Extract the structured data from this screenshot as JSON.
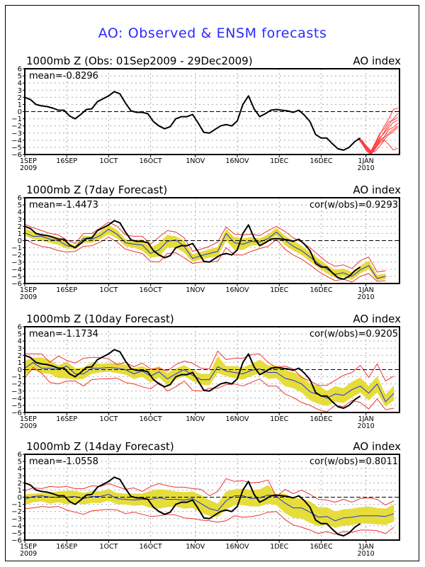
{
  "title": "AO: Observed & ENSM forecasts",
  "colors": {
    "title": "#2a2aff",
    "observed": "#000000",
    "ensemble_mean": "#2233dd",
    "spread": "#e6dc3a",
    "envelope": "#ee3333",
    "obs_member_forecasts": "#ff3b3b",
    "grid": "#aaaaaa"
  },
  "chart_data": [
    {
      "type": "line",
      "title": "1000mb Z (Obs: 01Sep2009 - 29Dec2009)",
      "right_label": "AO index",
      "stat_left": "mean=-0.8296",
      "stat_right": "",
      "ylim": [
        -6,
        6
      ],
      "yticks": [
        6,
        5,
        4,
        3,
        2,
        1,
        0,
        -1,
        -2,
        -3,
        -4,
        -5,
        -6
      ],
      "xlim_days": [
        0,
        134
      ],
      "xticks": [
        {
          "day": 0,
          "label": "1SEP",
          "sub": "2009"
        },
        {
          "day": 15,
          "label": "16SEP",
          "sub": ""
        },
        {
          "day": 30,
          "label": "1OCT",
          "sub": ""
        },
        {
          "day": 45,
          "label": "16OCT",
          "sub": ""
        },
        {
          "day": 61,
          "label": "1NOV",
          "sub": ""
        },
        {
          "day": 76,
          "label": "16NOV",
          "sub": ""
        },
        {
          "day": 91,
          "label": "1DEC",
          "sub": ""
        },
        {
          "day": 106,
          "label": "16DEC",
          "sub": ""
        },
        {
          "day": 122,
          "label": "1JAN",
          "sub": "2010"
        }
      ],
      "grid": true,
      "series_kind": "observed_with_members"
    },
    {
      "type": "line",
      "title": "1000mb Z (7day Forecast)",
      "right_label": "AO index",
      "stat_left": "mean=-1.4473",
      "stat_right": "cor(w/obs)=0.9293",
      "ylim": [
        -6,
        6
      ],
      "lead_days": 7,
      "series_kind": "forecast"
    },
    {
      "type": "line",
      "title": "1000mb Z (10day Forecast)",
      "right_label": "AO index",
      "stat_left": "mean=-1.1734",
      "stat_right": "cor(w/obs)=0.9205",
      "ylim": [
        -6,
        6
      ],
      "lead_days": 10,
      "series_kind": "forecast"
    },
    {
      "type": "line",
      "title": "1000mb Z (14day Forecast)",
      "right_label": "AO index",
      "stat_left": "mean=-1.0558",
      "stat_right": "cor(w/obs)=0.8011",
      "ylim": [
        -6,
        6
      ],
      "lead_days": 14,
      "series_kind": "forecast"
    }
  ],
  "observed": {
    "name": "Observed AO",
    "days": [
      0,
      2,
      4,
      6,
      8,
      10,
      12,
      14,
      16,
      18,
      20,
      22,
      24,
      26,
      28,
      30,
      32,
      34,
      36,
      38,
      40,
      42,
      44,
      46,
      48,
      50,
      52,
      54,
      56,
      58,
      60,
      62,
      64,
      66,
      68,
      70,
      72,
      74,
      76,
      78,
      80,
      82,
      84,
      86,
      88,
      90,
      92,
      94,
      96,
      98,
      100,
      102,
      104,
      106,
      108,
      110,
      112,
      114,
      116,
      118,
      120
    ],
    "values": [
      2.0,
      1.7,
      1.0,
      0.8,
      0.7,
      0.5,
      0.2,
      0.2,
      -0.6,
      -1.0,
      -0.4,
      0.3,
      0.4,
      1.4,
      1.8,
      2.2,
      2.8,
      2.5,
      1.2,
      0.1,
      -0.1,
      -0.1,
      -0.3,
      -1.4,
      -2.0,
      -2.4,
      -2.1,
      -1.0,
      -0.7,
      -0.7,
      -0.4,
      -1.6,
      -2.9,
      -3.0,
      -2.5,
      -2.0,
      -1.8,
      -2.0,
      -1.3,
      1.0,
      2.2,
      0.4,
      -0.7,
      -0.3,
      0.2,
      0.3,
      0.2,
      0.1,
      -0.1,
      0.2,
      1.2,
      0.0,
      0.7,
      1.0,
      0.2,
      -0.4,
      -0.3,
      -0.7,
      -1.2,
      -1.0,
      -0.6
    ]
  },
  "observed_tail": {
    "days": [
      100,
      102,
      104,
      106,
      108,
      110,
      112,
      114,
      116,
      118,
      120
    ],
    "values": [
      -0.5,
      -1.4,
      -3.2,
      -3.7,
      -3.7,
      -4.5,
      -5.2,
      -5.4,
      -5.0,
      -4.2,
      -3.7
    ]
  },
  "member_forecasts": {
    "name": "ENSM member forecasts (from 29Dec2009)",
    "start_day": 119,
    "members": [
      [
        -3.7,
        -4.2,
        -5.0,
        -5.8,
        -4.5,
        -3.2,
        -2.0,
        -1.0,
        0.3,
        0.5
      ],
      [
        -3.7,
        -4.3,
        -5.2,
        -5.9,
        -4.8,
        -3.8,
        -2.8,
        -1.8,
        -1.0,
        -0.3
      ],
      [
        -3.7,
        -4.0,
        -4.9,
        -5.7,
        -5.0,
        -4.0,
        -3.5,
        -2.5,
        -2.2,
        -1.6
      ],
      [
        -3.7,
        -4.4,
        -5.4,
        -6.0,
        -5.2,
        -4.2,
        -3.6,
        -3.0,
        -2.5,
        -2.0
      ],
      [
        -3.7,
        -4.1,
        -4.8,
        -5.5,
        -4.3,
        -3.0,
        -2.4,
        -1.4,
        -1.2,
        -0.8
      ],
      [
        -3.7,
        -4.3,
        -5.1,
        -5.8,
        -5.5,
        -4.8,
        -4.0,
        -4.6,
        -5.4,
        -5.1
      ],
      [
        -3.7,
        -4.2,
        -5.0,
        -5.6,
        -4.6,
        -3.6,
        -3.0,
        -2.2,
        -1.5,
        -1.2
      ],
      [
        -3.7,
        -4.5,
        -5.5,
        -6.0,
        -5.1,
        -4.4,
        -3.9,
        -3.2,
        -2.8,
        -2.2
      ]
    ]
  },
  "forecasts": {
    "7": {
      "days": [
        0,
        3,
        6,
        9,
        12,
        15,
        18,
        21,
        24,
        27,
        30,
        33,
        36,
        39,
        42,
        45,
        48,
        51,
        54,
        57,
        60,
        63,
        66,
        69,
        72,
        75,
        78,
        81,
        84,
        87,
        90,
        93,
        96,
        99,
        102,
        105,
        108,
        111,
        114,
        117,
        120,
        123,
        126,
        129
      ],
      "mean": [
        1.1,
        0.6,
        0.6,
        0.2,
        0.0,
        -0.7,
        -0.9,
        0.3,
        0.2,
        0.7,
        1.6,
        0.9,
        -0.3,
        -0.5,
        -0.6,
        -1.8,
        -1.3,
        -0.1,
        0.1,
        -0.8,
        -2.5,
        -2.1,
        -1.8,
        -1.5,
        1.0,
        -0.3,
        -0.5,
        -0.1,
        -0.2,
        0.3,
        1.2,
        0.1,
        -0.8,
        -1.4,
        -2.3,
        -3.2,
        -4.0,
        -4.7,
        -4.5,
        -5.0,
        -4.1,
        -3.5,
        -5.3,
        -5.0
      ],
      "spread_lo": [
        0.7,
        0.2,
        0.0,
        -0.3,
        -0.6,
        -1.1,
        -1.2,
        -0.3,
        -0.3,
        0.2,
        0.9,
        0.3,
        -0.8,
        -1.0,
        -1.4,
        -2.4,
        -2.2,
        -1.0,
        -1.0,
        -1.7,
        -3.0,
        -2.6,
        -2.4,
        -2.2,
        0.0,
        -1.3,
        -1.3,
        -0.7,
        -0.6,
        -0.2,
        0.7,
        -0.6,
        -1.4,
        -2.0,
        -2.9,
        -3.8,
        -4.6,
        -5.2,
        -5.0,
        -5.5,
        -4.6,
        -4.0,
        -5.6,
        -5.4
      ],
      "spread_hi": [
        1.8,
        1.2,
        1.0,
        0.6,
        0.5,
        -0.3,
        -0.6,
        0.7,
        0.6,
        1.3,
        2.2,
        1.5,
        0.2,
        0.1,
        0.2,
        -1.0,
        -0.3,
        0.8,
        0.6,
        0.0,
        -1.9,
        -1.6,
        -1.2,
        -0.9,
        1.6,
        0.5,
        0.3,
        0.5,
        0.3,
        0.9,
        1.8,
        0.7,
        0.0,
        -0.7,
        -1.6,
        -2.5,
        -3.4,
        -4.1,
        -3.9,
        -4.4,
        -3.5,
        -2.8,
        -4.8,
        -4.6
      ],
      "min": [
        0.2,
        -0.4,
        -0.8,
        -1.0,
        -1.4,
        -1.6,
        -1.5,
        -0.8,
        -0.7,
        -0.2,
        0.5,
        -0.2,
        -1.2,
        -1.5,
        -1.8,
        -2.9,
        -3.0,
        -1.8,
        -1.7,
        -2.4,
        -3.2,
        -3.0,
        -3.0,
        -2.9,
        -1.0,
        -2.0,
        -2.0,
        -1.5,
        -1.1,
        -0.8,
        0.2,
        -1.2,
        -2.0,
        -2.6,
        -3.4,
        -4.3,
        -5.0,
        -5.6,
        -5.4,
        -5.8,
        -5.0,
        -4.6,
        -5.7,
        -5.6
      ],
      "max": [
        2.3,
        1.8,
        1.4,
        1.0,
        0.8,
        0.1,
        -0.4,
        1.0,
        1.0,
        1.8,
        2.6,
        2.0,
        0.8,
        0.6,
        0.6,
        -0.5,
        0.5,
        1.4,
        1.2,
        0.4,
        -1.5,
        -1.2,
        -0.8,
        -0.2,
        1.9,
        0.9,
        0.8,
        0.9,
        0.7,
        1.4,
        2.0,
        1.3,
        0.4,
        -0.2,
        -1.0,
        -2.0,
        -3.0,
        -3.6,
        -3.4,
        -3.9,
        -2.8,
        -2.3,
        -4.4,
        -4.2
      ]
    },
    "10": {
      "days": [
        0,
        3,
        6,
        9,
        12,
        15,
        18,
        21,
        24,
        27,
        30,
        33,
        36,
        39,
        42,
        45,
        48,
        51,
        54,
        57,
        60,
        63,
        66,
        69,
        72,
        75,
        78,
        81,
        84,
        87,
        90,
        93,
        96,
        99,
        102,
        105,
        108,
        111,
        114,
        117,
        120,
        123,
        126,
        129,
        132
      ],
      "mean": [
        0.2,
        1.0,
        0.2,
        0.2,
        0.0,
        0.5,
        -0.6,
        -0.6,
        0.2,
        0.2,
        0.3,
        0.2,
        0.0,
        -0.6,
        -0.2,
        -0.9,
        -0.3,
        -1.3,
        -0.6,
        0.0,
        -0.8,
        -1.4,
        -1.4,
        0.4,
        -0.2,
        -0.4,
        -0.6,
        -0.1,
        0.1,
        -0.4,
        -0.4,
        -1.2,
        -1.5,
        -2.0,
        -3.1,
        -3.5,
        -4.0,
        -3.4,
        -3.6,
        -2.8,
        -2.3,
        -3.3,
        -2.0,
        -4.5,
        -3.3
      ],
      "spread_lo": [
        -0.8,
        0.0,
        -0.5,
        -0.6,
        -1.2,
        -1.2,
        -1.4,
        -1.3,
        -0.6,
        -0.4,
        -0.3,
        -0.5,
        -0.7,
        -1.3,
        -1.0,
        -1.8,
        -1.1,
        -2.2,
        -1.4,
        -0.9,
        -1.6,
        -2.1,
        -2.2,
        -0.5,
        -0.9,
        -1.2,
        -1.4,
        -0.9,
        -0.5,
        -1.3,
        -1.2,
        -2.3,
        -2.6,
        -3.2,
        -4.3,
        -4.8,
        -5.1,
        -4.5,
        -4.7,
        -3.9,
        -3.2,
        -4.3,
        -3.2,
        -5.2,
        -4.3
      ],
      "spread_hi": [
        1.2,
        1.7,
        1.7,
        1.3,
        0.6,
        1.1,
        0.2,
        0.3,
        1.0,
        0.8,
        0.9,
        0.9,
        0.7,
        0.2,
        0.5,
        0.0,
        0.5,
        -0.5,
        0.2,
        0.6,
        0.0,
        -0.6,
        -0.6,
        1.9,
        0.5,
        0.5,
        0.3,
        0.8,
        1.4,
        0.6,
        0.6,
        0.0,
        -0.4,
        -0.8,
        -2.0,
        -2.2,
        -3.0,
        -2.3,
        -2.6,
        -1.7,
        -1.1,
        -2.3,
        -0.9,
        -3.5,
        -2.2
      ],
      "min": [
        -1.2,
        0.3,
        -0.5,
        -1.8,
        -2.0,
        -1.6,
        -1.6,
        -2.3,
        -1.4,
        -1.3,
        -1.3,
        -1.2,
        -1.8,
        -2.0,
        -2.4,
        -2.7,
        -1.8,
        -3.0,
        -2.4,
        -1.6,
        -2.9,
        -3.0,
        -2.6,
        -2.6,
        -2.1,
        -2.0,
        -2.3,
        -1.8,
        -1.3,
        -2.3,
        -2.3,
        -3.4,
        -3.9,
        -4.6,
        -5.0,
        -5.6,
        -5.9,
        -5.0,
        -5.2,
        -4.3,
        -4.6,
        -5.5,
        -4.1,
        -5.6,
        -5.4
      ],
      "max": [
        2.2,
        2.2,
        2.2,
        1.0,
        1.9,
        1.3,
        0.9,
        1.6,
        1.7,
        1.7,
        1.5,
        0.7,
        1.0,
        0.4,
        0.9,
        0.1,
        0.2,
        -0.2,
        0.7,
        1.2,
        0.9,
        0.2,
        0.1,
        2.6,
        1.4,
        1.6,
        1.6,
        2.1,
        2.2,
        1.0,
        0.3,
        0.5,
        0.1,
        -1.1,
        -1.6,
        -2.2,
        -2.2,
        -1.5,
        -0.8,
        -0.4,
        0.6,
        -1.1,
        0.8,
        -1.6,
        -0.9
      ]
    },
    "14": {
      "days": [
        0,
        3,
        6,
        9,
        12,
        15,
        18,
        21,
        24,
        27,
        30,
        33,
        36,
        39,
        42,
        45,
        48,
        51,
        54,
        57,
        60,
        63,
        66,
        69,
        72,
        75,
        78,
        81,
        84,
        87,
        90,
        93,
        96,
        99,
        102,
        105,
        108,
        111,
        114,
        117,
        120,
        123,
        126,
        129,
        132
      ],
      "mean": [
        -0.3,
        0.1,
        0.2,
        0.0,
        0.0,
        0.0,
        0.1,
        -0.2,
        0.1,
        0.1,
        0.4,
        -0.2,
        -0.3,
        -0.4,
        -0.3,
        -0.3,
        -0.1,
        -0.3,
        -0.3,
        -0.4,
        -0.2,
        -0.9,
        -1.6,
        -1.9,
        -0.5,
        0.2,
        0.2,
        -0.2,
        -0.1,
        0.3,
        0.1,
        -0.8,
        -1.5,
        -1.5,
        -2.1,
        -2.8,
        -2.7,
        -3.3,
        -2.9,
        -2.8,
        -2.6,
        -2.6,
        -2.6,
        -2.7,
        -2.3
      ],
      "spread_lo": [
        -1.1,
        -0.7,
        -0.6,
        -0.9,
        -0.7,
        -1.0,
        -0.8,
        -1.0,
        -0.8,
        -0.8,
        -0.5,
        -1.0,
        -1.0,
        -1.2,
        -1.1,
        -1.5,
        -1.6,
        -1.4,
        -1.3,
        -1.6,
        -1.5,
        -2.2,
        -2.6,
        -2.8,
        -1.7,
        -1.1,
        -1.1,
        -1.3,
        -1.3,
        -0.9,
        -1.1,
        -2.2,
        -2.9,
        -3.0,
        -3.6,
        -4.1,
        -3.8,
        -4.3,
        -4.0,
        -3.9,
        -3.7,
        -3.7,
        -3.8,
        -3.9,
        -3.4
      ],
      "spread_hi": [
        0.4,
        0.5,
        0.6,
        0.6,
        0.8,
        0.9,
        0.9,
        0.6,
        0.9,
        0.8,
        1.1,
        0.6,
        0.5,
        0.5,
        0.5,
        0.9,
        1.1,
        1.0,
        0.8,
        0.7,
        0.8,
        0.3,
        -0.4,
        -0.9,
        0.8,
        1.1,
        1.2,
        1.0,
        1.1,
        1.7,
        0.4,
        0.5,
        -0.1,
        -0.2,
        -0.6,
        -1.4,
        -1.4,
        -2.0,
        -1.7,
        -1.6,
        -1.4,
        -1.3,
        -1.5,
        -1.6,
        -1.0
      ],
      "min": [
        -1.6,
        -1.5,
        -1.3,
        -1.4,
        -1.3,
        -1.8,
        -2.1,
        -2.4,
        -1.9,
        -1.8,
        -1.7,
        -1.8,
        -2.3,
        -2.1,
        -2.4,
        -2.7,
        -2.6,
        -2.4,
        -2.5,
        -2.9,
        -3.0,
        -3.2,
        -3.3,
        -3.5,
        -3.3,
        -2.6,
        -2.8,
        -2.7,
        -2.5,
        -2.1,
        -2.0,
        -3.1,
        -3.9,
        -4.2,
        -4.6,
        -5.1,
        -4.8,
        -5.2,
        -4.8,
        -4.9,
        -4.6,
        -4.6,
        -4.7,
        -5.1,
        -4.2
      ],
      "max": [
        0.9,
        1.3,
        1.2,
        1.5,
        1.4,
        1.5,
        1.2,
        1.2,
        1.6,
        1.5,
        1.9,
        1.5,
        1.1,
        1.3,
        0.8,
        1.5,
        1.9,
        1.6,
        1.4,
        1.4,
        1.2,
        1.1,
        0.2,
        0.8,
        2.6,
        2.2,
        2.3,
        2.0,
        2.1,
        2.4,
        0.0,
        1.1,
        0.5,
        1.0,
        0.4,
        -0.3,
        -0.4,
        -0.7,
        -0.3,
        -0.7,
        -0.2,
        -0.1,
        -0.3,
        -1.1,
        -0.5
      ]
    }
  }
}
